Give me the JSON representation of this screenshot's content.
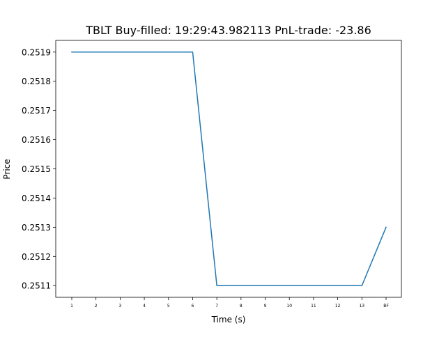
{
  "chart_data": {
    "type": "line",
    "title": "TBLT  Buy-filled:  19:29:43.982113  PnL-trade:  -23.86",
    "xlabel": "Time (s)",
    "ylabel": "Price",
    "categories": [
      "1",
      "2",
      "3",
      "4",
      "5",
      "6",
      "7",
      "8",
      "9",
      "10",
      "11",
      "12",
      "13",
      "BF"
    ],
    "series": [
      {
        "color": "#1f77b4",
        "values": [
          0.2519,
          0.2519,
          0.2519,
          0.2519,
          0.2519,
          0.2519,
          0.2511,
          0.2511,
          0.2511,
          0.2511,
          0.2511,
          0.2511,
          0.2511,
          0.2513
        ]
      }
    ],
    "yticks": [
      "0.2511",
      "0.2512",
      "0.2513",
      "0.2514",
      "0.2515",
      "0.2516",
      "0.2517",
      "0.2518",
      "0.2519"
    ],
    "ylim": [
      0.25106,
      0.25194
    ],
    "grid": false,
    "legend": "none"
  }
}
